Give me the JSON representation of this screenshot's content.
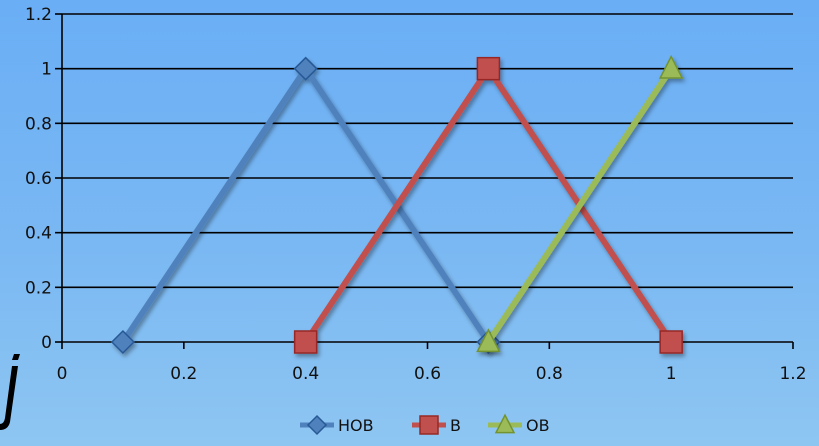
{
  "chart_data": {
    "type": "line",
    "title": "",
    "xlabel": "",
    "ylabel": "",
    "xlim": [
      0,
      1.2
    ],
    "ylim": [
      0,
      1.2
    ],
    "x_ticks": [
      "0",
      "0.2",
      "0.4",
      "0.6",
      "0.8",
      "1",
      "1.2"
    ],
    "y_ticks": [
      "0",
      "0.2",
      "0.4",
      "0.6",
      "0.8",
      "1",
      "1.2"
    ],
    "grid": "horizontal",
    "legend": "bottom",
    "series": [
      {
        "name": "HOB",
        "marker": "diamond",
        "color": "#4f81bd",
        "x": [
          0.1,
          0.4,
          0.7
        ],
        "y": [
          0,
          1,
          0
        ]
      },
      {
        "name": "B",
        "marker": "square",
        "color": "#c0504d",
        "x": [
          0.4,
          0.7,
          1.0
        ],
        "y": [
          0,
          1,
          0
        ]
      },
      {
        "name": "OB",
        "marker": "triangle",
        "color": "#9bbb59",
        "x": [
          0.7,
          1.0
        ],
        "y": [
          0,
          1
        ]
      }
    ]
  }
}
